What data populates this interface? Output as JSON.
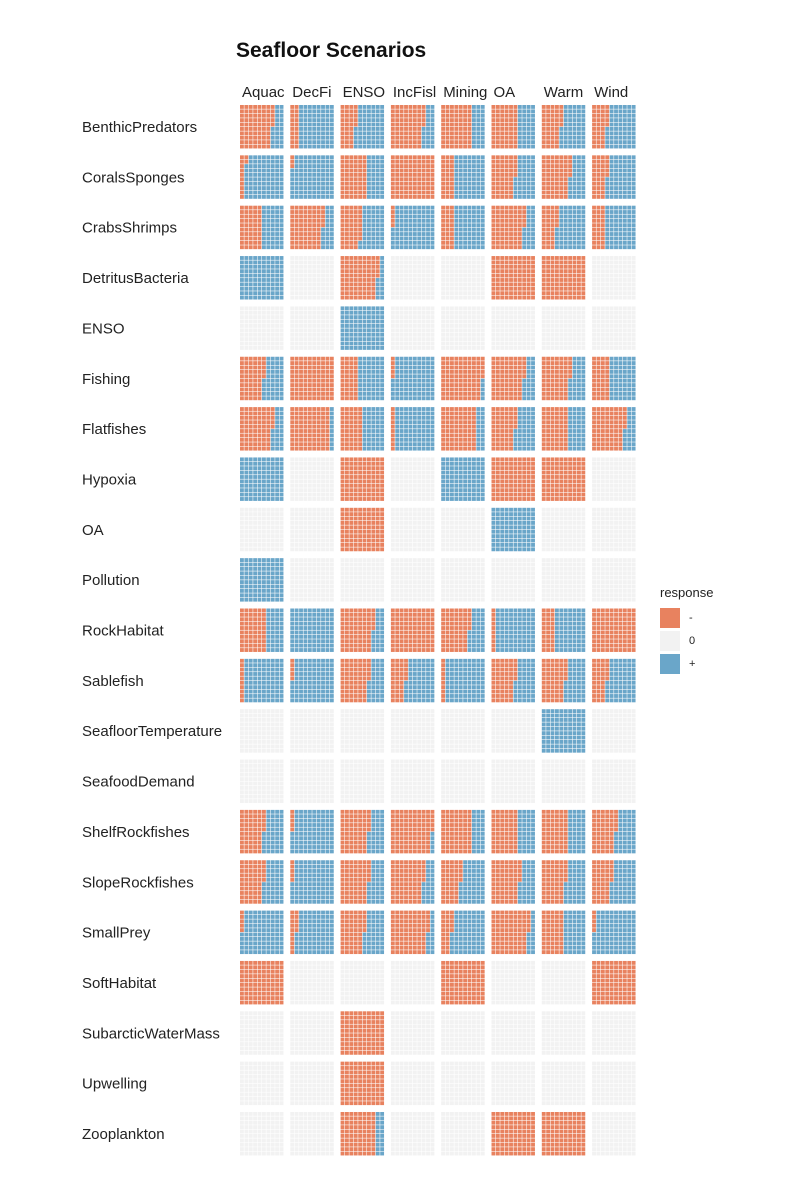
{
  "chart_data": {
    "type": "heatmap",
    "title": "Seafloor Scenarios",
    "scenarios": [
      "Aquac",
      "DecFi",
      "ENSO",
      "IncFisl",
      "Mining",
      "OA",
      "Warm",
      "Wind"
    ],
    "variables": [
      "BenthicPredators",
      "CoralsSponges",
      "CrabsShrimps",
      "DetritusBacteria",
      "ENSO",
      "Fishing",
      "Flatfishes",
      "Hypoxia",
      "OA",
      "Pollution",
      "RockHabitat",
      "Sablefish",
      "SeafloorTemperature",
      "SeafoodDemand",
      "ShelfRockfishes",
      "SlopeRockfishes",
      "SmallPrey",
      "SoftHabitat",
      "SubarcticWaterMass",
      "Upwelling",
      "Zooplankton"
    ],
    "value_description": "proportion of simulations with negative (-), zero (0) and positive (+) response; each cell is a 10x10 waffle",
    "values_neg_zero_pos": [
      [
        [
          0.75,
          0,
          0.25
        ],
        [
          0.2,
          0,
          0.8
        ],
        [
          0.35,
          0,
          0.65
        ],
        [
          0.75,
          0,
          0.25
        ],
        [
          0.7,
          0,
          0.3
        ],
        [
          0.6,
          0,
          0.4
        ],
        [
          0.45,
          0,
          0.55
        ],
        [
          0.35,
          0,
          0.65
        ]
      ],
      [
        [
          0.12,
          0,
          0.88
        ],
        [
          0.03,
          0,
          0.97
        ],
        [
          0.6,
          0,
          0.4
        ],
        [
          1,
          0,
          0
        ],
        [
          0.3,
          0,
          0.7
        ],
        [
          0.55,
          0,
          0.45
        ],
        [
          0.65,
          0,
          0.35
        ],
        [
          0.35,
          0,
          0.65
        ]
      ],
      [
        [
          0.5,
          0,
          0.5
        ],
        [
          0.75,
          0,
          0.25
        ],
        [
          0.48,
          0,
          0.52
        ],
        [
          0.05,
          0,
          0.95
        ],
        [
          0.3,
          0,
          0.7
        ],
        [
          0.75,
          0,
          0.25
        ],
        [
          0.35,
          0,
          0.65
        ],
        [
          0.3,
          0,
          0.7
        ]
      ],
      [
        [
          0,
          0,
          1
        ],
        [
          0,
          1,
          0
        ],
        [
          0.85,
          0,
          0.15
        ],
        [
          0,
          1,
          0
        ],
        [
          0,
          1,
          0
        ],
        [
          1,
          0,
          0
        ],
        [
          1,
          0,
          0
        ],
        [
          0,
          1,
          0
        ]
      ],
      [
        [
          0,
          1,
          0
        ],
        [
          0,
          1,
          0
        ],
        [
          0,
          0,
          1
        ],
        [
          0,
          1,
          0
        ],
        [
          0,
          1,
          0
        ],
        [
          0,
          1,
          0
        ],
        [
          0,
          1,
          0
        ],
        [
          0,
          1,
          0
        ]
      ],
      [
        [
          0.55,
          0,
          0.45
        ],
        [
          1,
          0,
          0
        ],
        [
          0.4,
          0,
          0.6
        ],
        [
          0.05,
          0,
          0.95
        ],
        [
          0.95,
          0,
          0.05
        ],
        [
          0.75,
          0,
          0.25
        ],
        [
          0.65,
          0,
          0.35
        ],
        [
          0.4,
          0,
          0.6
        ]
      ],
      [
        [
          0.75,
          0,
          0.25
        ],
        [
          0.9,
          0,
          0.1
        ],
        [
          0.5,
          0,
          0.5
        ],
        [
          0.1,
          0,
          0.9
        ],
        [
          0.8,
          0,
          0.2
        ],
        [
          0.55,
          0,
          0.45
        ],
        [
          0.6,
          0,
          0.4
        ],
        [
          0.75,
          0,
          0.25
        ]
      ],
      [
        [
          0,
          0,
          1
        ],
        [
          0,
          1,
          0
        ],
        [
          1,
          0,
          0
        ],
        [
          0,
          1,
          0
        ],
        [
          0,
          0,
          1
        ],
        [
          1,
          0,
          0
        ],
        [
          1,
          0,
          0
        ],
        [
          0,
          1,
          0
        ]
      ],
      [
        [
          0,
          1,
          0
        ],
        [
          0,
          1,
          0
        ],
        [
          1,
          0,
          0
        ],
        [
          0,
          1,
          0
        ],
        [
          0,
          1,
          0
        ],
        [
          0,
          0,
          1
        ],
        [
          0,
          1,
          0
        ],
        [
          0,
          1,
          0
        ]
      ],
      [
        [
          0,
          0,
          1
        ],
        [
          0,
          1,
          0
        ],
        [
          0,
          1,
          0
        ],
        [
          0,
          1,
          0
        ],
        [
          0,
          1,
          0
        ],
        [
          0,
          1,
          0
        ],
        [
          0,
          1,
          0
        ],
        [
          0,
          1,
          0
        ]
      ],
      [
        [
          0.6,
          0,
          0.4
        ],
        [
          0,
          0,
          1
        ],
        [
          0.75,
          0,
          0.25
        ],
        [
          1,
          0,
          0
        ],
        [
          0.65,
          0,
          0.35
        ],
        [
          0.1,
          0,
          0.9
        ],
        [
          0.3,
          0,
          0.7
        ],
        [
          1,
          0,
          0
        ]
      ],
      [
        [
          0.1,
          0,
          0.9
        ],
        [
          0.05,
          0,
          0.95
        ],
        [
          0.65,
          0,
          0.35
        ],
        [
          0.35,
          0,
          0.65
        ],
        [
          0.1,
          0,
          0.9
        ],
        [
          0.55,
          0,
          0.45
        ],
        [
          0.55,
          0,
          0.45
        ],
        [
          0.35,
          0,
          0.65
        ]
      ],
      [
        [
          0,
          1,
          0
        ],
        [
          0,
          1,
          0
        ],
        [
          0,
          1,
          0
        ],
        [
          0,
          1,
          0
        ],
        [
          0,
          1,
          0
        ],
        [
          0,
          1,
          0
        ],
        [
          0,
          0,
          1
        ],
        [
          0,
          1,
          0
        ]
      ],
      [
        [
          0,
          1,
          0
        ],
        [
          0,
          1,
          0
        ],
        [
          0,
          1,
          0
        ],
        [
          0,
          1,
          0
        ],
        [
          0,
          1,
          0
        ],
        [
          0,
          1,
          0
        ],
        [
          0,
          1,
          0
        ],
        [
          0,
          1,
          0
        ]
      ],
      [
        [
          0.55,
          0,
          0.45
        ],
        [
          0.05,
          0,
          0.95
        ],
        [
          0.65,
          0,
          0.35
        ],
        [
          0.95,
          0,
          0.05
        ],
        [
          0.7,
          0,
          0.3
        ],
        [
          0.6,
          0,
          0.4
        ],
        [
          0.6,
          0,
          0.4
        ],
        [
          0.55,
          0,
          0.45
        ]
      ],
      [
        [
          0.55,
          0,
          0.45
        ],
        [
          0.05,
          0,
          0.95
        ],
        [
          0.65,
          0,
          0.35
        ],
        [
          0.75,
          0,
          0.25
        ],
        [
          0.45,
          0,
          0.55
        ],
        [
          0.65,
          0,
          0.35
        ],
        [
          0.55,
          0,
          0.45
        ],
        [
          0.45,
          0,
          0.55
        ]
      ],
      [
        [
          0.05,
          0,
          0.95
        ],
        [
          0.15,
          0,
          0.85
        ],
        [
          0.55,
          0,
          0.45
        ],
        [
          0.85,
          0,
          0.15
        ],
        [
          0.25,
          0,
          0.75
        ],
        [
          0.85,
          0,
          0.15
        ],
        [
          0.5,
          0,
          0.5
        ],
        [
          0.05,
          0,
          0.95
        ]
      ],
      [
        [
          1,
          0,
          0
        ],
        [
          0,
          1,
          0
        ],
        [
          0,
          1,
          0
        ],
        [
          0,
          1,
          0
        ],
        [
          1,
          0,
          0
        ],
        [
          0,
          1,
          0
        ],
        [
          0,
          1,
          0
        ],
        [
          1,
          0,
          0
        ]
      ],
      [
        [
          0,
          1,
          0
        ],
        [
          0,
          1,
          0
        ],
        [
          1,
          0,
          0
        ],
        [
          0,
          1,
          0
        ],
        [
          0,
          1,
          0
        ],
        [
          0,
          1,
          0
        ],
        [
          0,
          1,
          0
        ],
        [
          0,
          1,
          0
        ]
      ],
      [
        [
          0,
          1,
          0
        ],
        [
          0,
          1,
          0
        ],
        [
          1,
          0,
          0
        ],
        [
          0,
          1,
          0
        ],
        [
          0,
          1,
          0
        ],
        [
          0,
          1,
          0
        ],
        [
          0,
          1,
          0
        ],
        [
          0,
          1,
          0
        ]
      ],
      [
        [
          0,
          1,
          0
        ],
        [
          0,
          1,
          0
        ],
        [
          0.8,
          0,
          0.2
        ],
        [
          0,
          1,
          0
        ],
        [
          0,
          1,
          0
        ],
        [
          1,
          0,
          0
        ],
        [
          1,
          0,
          0
        ],
        [
          0,
          1,
          0
        ]
      ]
    ],
    "legend": {
      "title": "response",
      "placement": "right",
      "items": [
        {
          "label": "-",
          "color": "#E8825F"
        },
        {
          "label": "0",
          "color": "#F2F2F2"
        },
        {
          "label": "+",
          "color": "#6AA6C9"
        }
      ]
    }
  }
}
